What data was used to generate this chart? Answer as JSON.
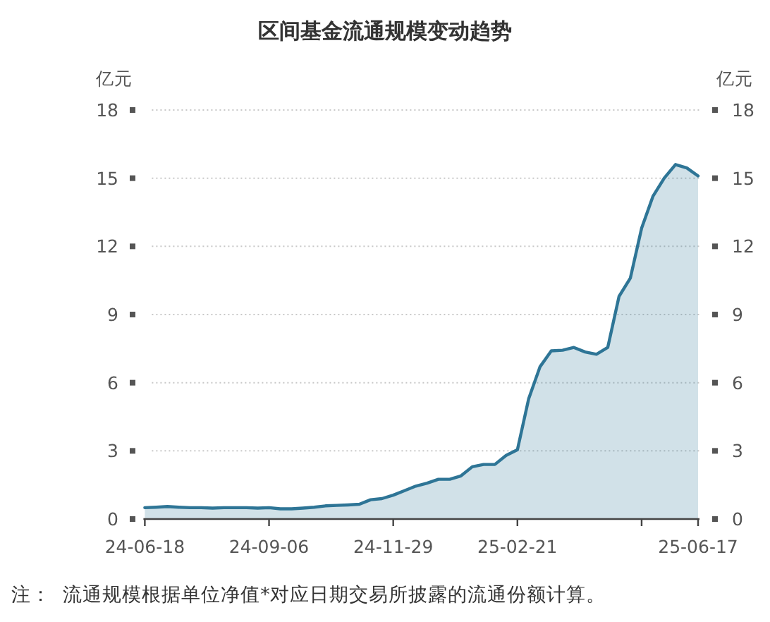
{
  "chart_data": {
    "type": "area",
    "title": "区间基金流通规模变动趋势",
    "ylabel": "亿元",
    "y2label": "亿元",
    "categories": [
      "24-06-18",
      null,
      null,
      null,
      null,
      null,
      null,
      null,
      null,
      null,
      null,
      "24-09-06",
      null,
      null,
      null,
      null,
      null,
      null,
      null,
      null,
      null,
      null,
      "24-11-29",
      null,
      null,
      null,
      null,
      null,
      null,
      null,
      null,
      null,
      null,
      "25-02-21",
      null,
      null,
      null,
      null,
      null,
      null,
      null,
      null,
      null,
      null,
      null,
      null,
      null,
      null,
      null,
      "25-06-17"
    ],
    "series": [
      {
        "color": "#2e7596",
        "values": [
          0.5,
          0.52,
          0.55,
          0.52,
          0.5,
          0.5,
          0.48,
          0.5,
          0.5,
          0.5,
          0.48,
          0.5,
          0.45,
          0.45,
          0.48,
          0.52,
          0.58,
          0.6,
          0.62,
          0.65,
          0.85,
          0.9,
          1.05,
          1.25,
          1.45,
          1.58,
          1.75,
          1.75,
          1.9,
          2.3,
          2.4,
          2.4,
          2.8,
          3.05,
          5.3,
          6.7,
          7.4,
          7.43,
          7.55,
          7.35,
          7.25,
          7.55,
          9.8,
          10.6,
          12.8,
          14.2,
          15.0,
          15.6,
          15.45,
          15.1
        ]
      }
    ],
    "ylim": [
      0,
      18
    ],
    "yticks": [
      0,
      3,
      6,
      9,
      12,
      15,
      18
    ],
    "y2lim": [
      0,
      18
    ],
    "y2ticks": [
      0,
      3,
      6,
      9,
      12,
      15,
      18
    ],
    "grid": "y",
    "marker": "none",
    "line_style": "solid",
    "annotations": [
      "注：  流通规模根据单位净值*对应日期交易所披露的流通份额计算。"
    ]
  }
}
